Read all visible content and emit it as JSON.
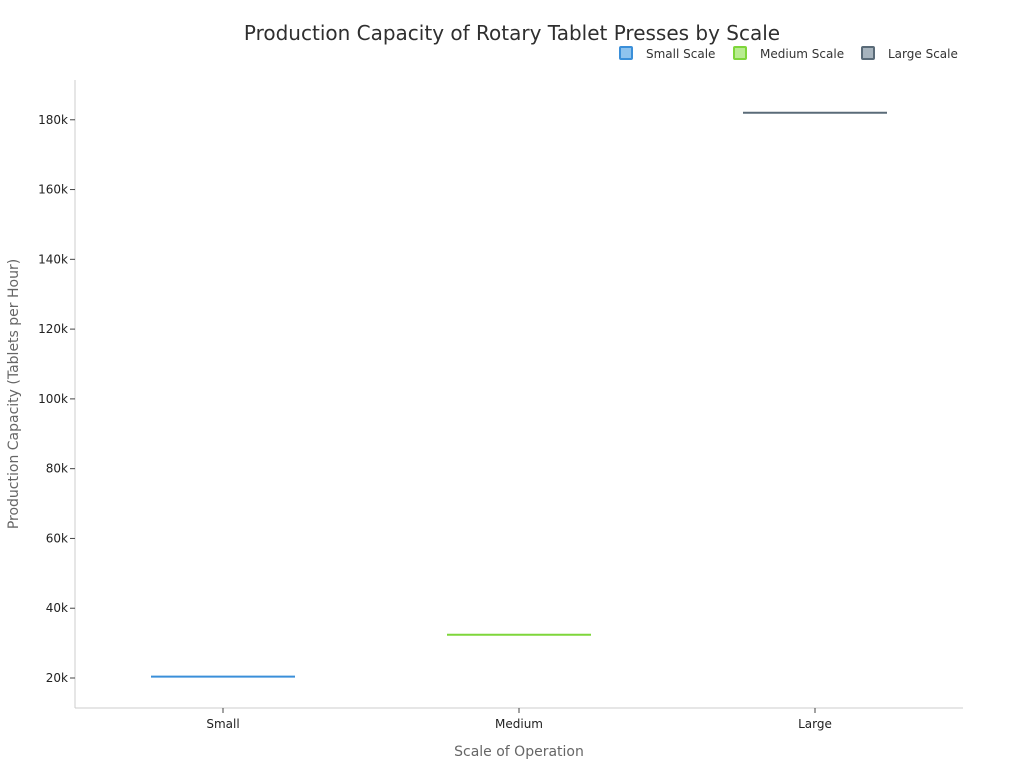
{
  "chart_data": {
    "type": "box",
    "title": "Production Capacity of Rotary Tablet Presses by Scale",
    "xlabel": "Scale of Operation",
    "ylabel": "Production Capacity (Tablets per Hour)",
    "categories": [
      "Small",
      "Medium",
      "Large"
    ],
    "series": [
      {
        "name": "Small Scale",
        "category": "Small",
        "values": [
          20400
        ],
        "color": "#3a8fd9",
        "fill": "#8ec3ee"
      },
      {
        "name": "Medium Scale",
        "category": "Medium",
        "values": [
          32400
        ],
        "color": "#7ed63a",
        "fill": "#b8ec90"
      },
      {
        "name": "Large Scale",
        "category": "Large",
        "values": [
          182000
        ],
        "color": "#5a6b78",
        "fill": "#a7b4be"
      }
    ],
    "ylim": [
      11400,
      191400
    ],
    "yticks": [
      20000,
      40000,
      60000,
      80000,
      100000,
      120000,
      140000,
      160000,
      180000
    ],
    "ytick_labels": [
      "20k",
      "40k",
      "60k",
      "80k",
      "100k",
      "120k",
      "140k",
      "160k",
      "180k"
    ],
    "grid": false,
    "legend_position": "top-right"
  }
}
